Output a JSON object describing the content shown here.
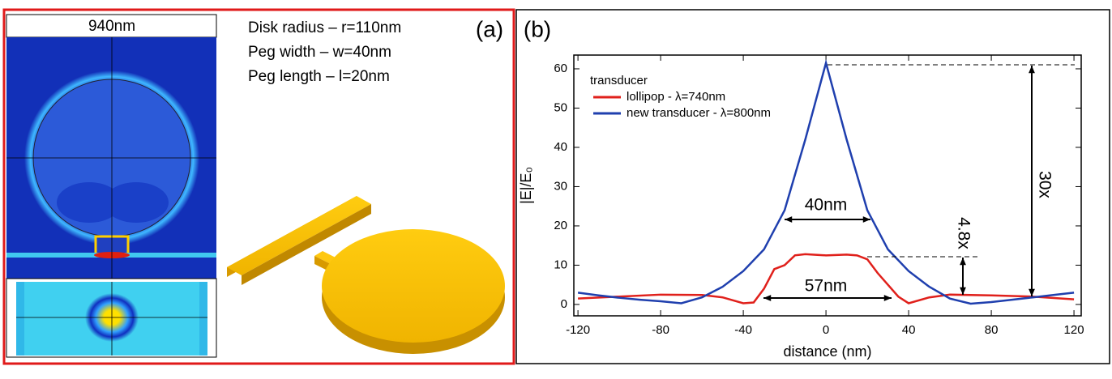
{
  "panel_a": {
    "label": "(a)",
    "field_map_title": "940nm",
    "parameters": [
      "Disk radius – r=110nm",
      "Peg width – w=40nm",
      "Peg length – l=20nm"
    ]
  },
  "chart_data": {
    "type": "line",
    "panel_label": "(b)",
    "xlabel": "distance (nm)",
    "ylabel": "|E|/E₀",
    "xlim": [
      -122,
      123.5
    ],
    "ylim": [
      -2.9,
      63.5
    ],
    "xticks": [
      -120,
      -80,
      -40,
      0,
      40,
      80,
      120
    ],
    "yticks": [
      0,
      10,
      20,
      30,
      40,
      50,
      60
    ],
    "legend_title": "transducer",
    "legend": "upper left",
    "series": [
      {
        "name": "lollipop - λ=740nm",
        "color": "#e0201b",
        "x": [
          -120,
          -100,
          -80,
          -60,
          -50,
          -40,
          -35,
          -30,
          -25,
          -20,
          -15,
          -10,
          0,
          10,
          15,
          20,
          25,
          30,
          35,
          40,
          50,
          60,
          80,
          100,
          120
        ],
        "values": [
          1.5,
          2,
          2.5,
          2.4,
          1.8,
          0.3,
          0.5,
          4,
          9,
          10,
          12.5,
          12.8,
          12.5,
          12.7,
          12.5,
          11.5,
          8,
          5,
          2,
          0.3,
          1.8,
          2.5,
          2.3,
          2,
          1.3
        ]
      },
      {
        "name": "new transducer - λ=800nm",
        "color": "#1f3fae",
        "x": [
          -120,
          -110,
          -100,
          -90,
          -80,
          -70,
          -60,
          -50,
          -40,
          -30,
          -20,
          -10,
          0,
          10,
          20,
          30,
          40,
          50,
          60,
          70,
          80,
          90,
          100,
          110,
          120
        ],
        "values": [
          3,
          2.3,
          1.7,
          1.2,
          0.8,
          0.3,
          1.8,
          4.5,
          8.5,
          14,
          24,
          42,
          61.5,
          42,
          24,
          14,
          8.5,
          4.5,
          1.5,
          0.2,
          0.6,
          1.2,
          1.8,
          2.4,
          3
        ]
      }
    ],
    "annotations": [
      "40nm",
      "57nm",
      "4.8x",
      "30x"
    ]
  }
}
